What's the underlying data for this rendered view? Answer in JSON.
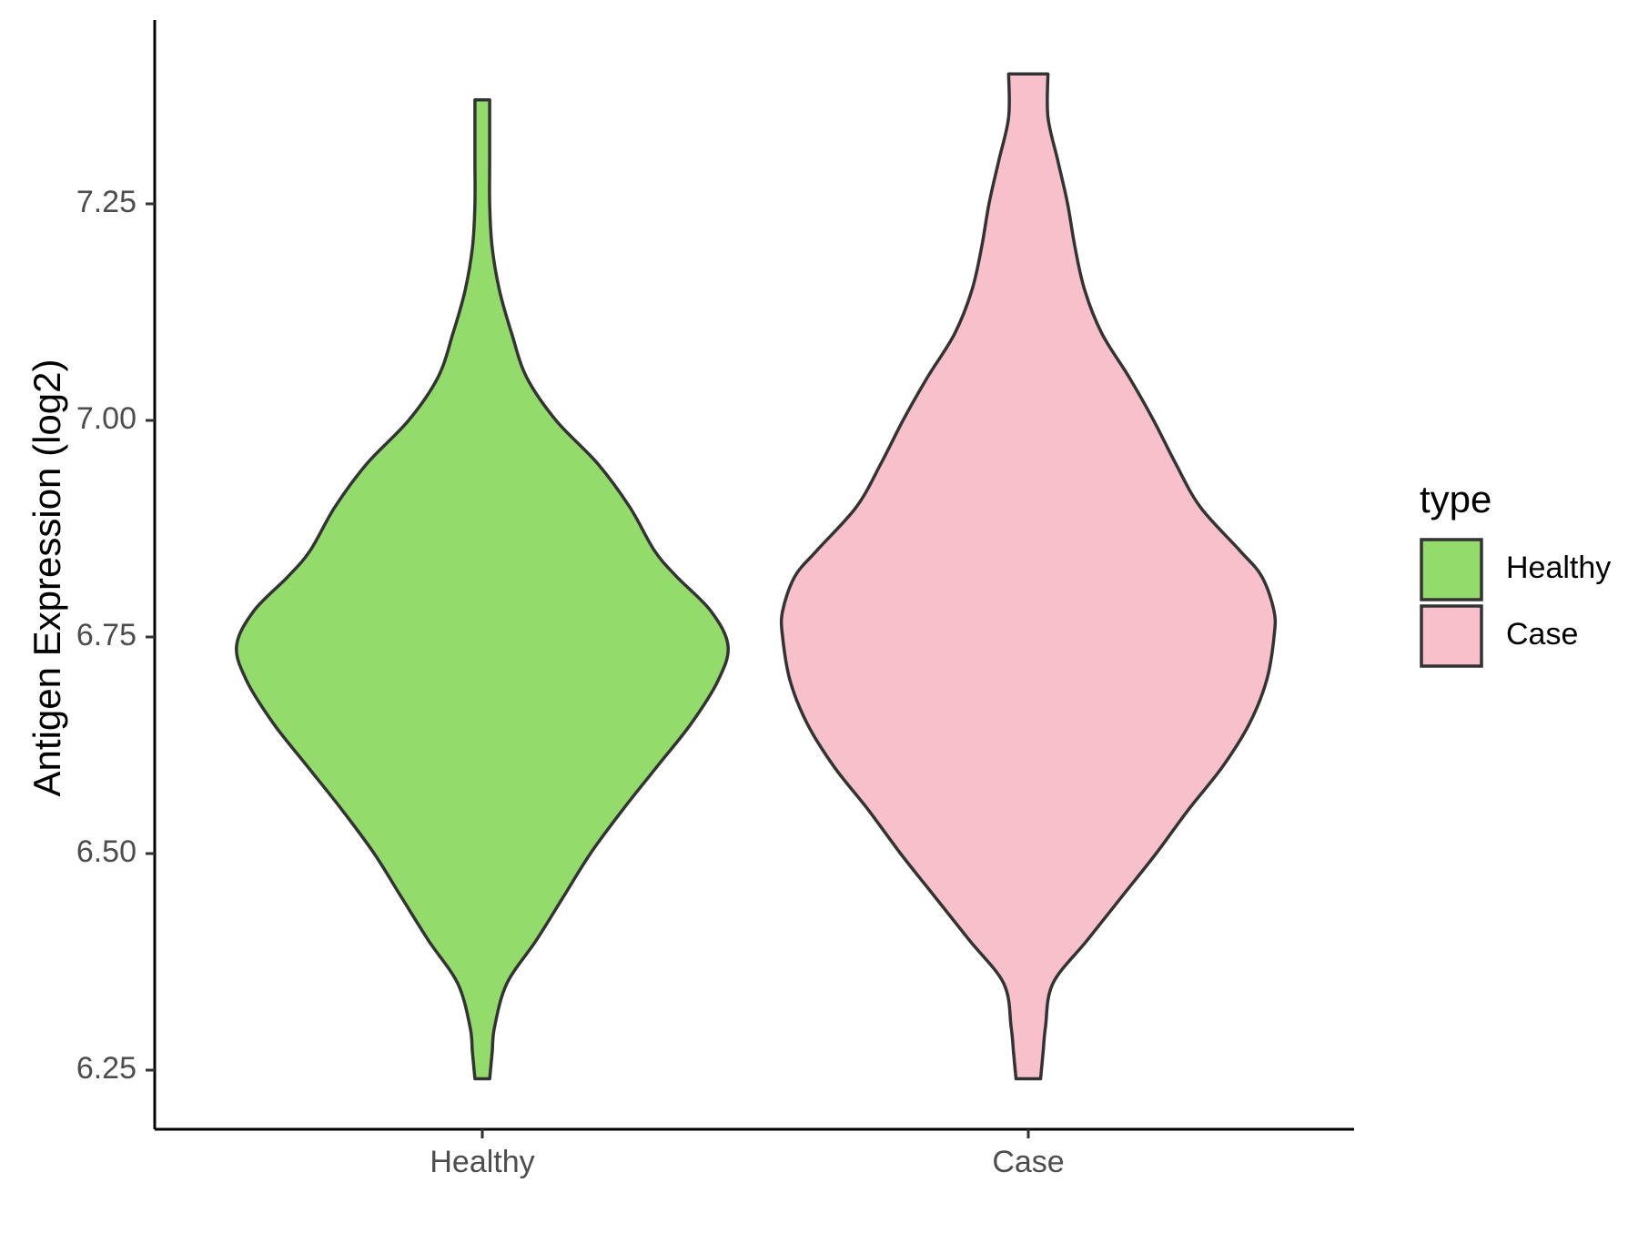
{
  "chart_data": {
    "type": "violin",
    "title": "",
    "xlabel": "",
    "ylabel": "Antigen Expression (log2)",
    "ylim": [
      6.2,
      7.43
    ],
    "yticks": [
      "6.25",
      "6.50",
      "6.75",
      "7.00",
      "7.25"
    ],
    "categories": [
      "Healthy",
      "Case"
    ],
    "legend": {
      "title": "type",
      "position": "right",
      "items": [
        "Healthy",
        "Case"
      ]
    },
    "series": [
      {
        "name": "Healthy",
        "color": "#93dc6b",
        "density_profile": [
          [
            6.24,
            0.03
          ],
          [
            6.27,
            0.04
          ],
          [
            6.3,
            0.05
          ],
          [
            6.35,
            0.1
          ],
          [
            6.4,
            0.22
          ],
          [
            6.45,
            0.33
          ],
          [
            6.5,
            0.44
          ],
          [
            6.55,
            0.57
          ],
          [
            6.6,
            0.71
          ],
          [
            6.65,
            0.85
          ],
          [
            6.7,
            0.96
          ],
          [
            6.74,
            1.0
          ],
          [
            6.78,
            0.93
          ],
          [
            6.82,
            0.79
          ],
          [
            6.85,
            0.7
          ],
          [
            6.9,
            0.6
          ],
          [
            6.95,
            0.47
          ],
          [
            7.0,
            0.3
          ],
          [
            7.05,
            0.18
          ],
          [
            7.1,
            0.12
          ],
          [
            7.15,
            0.07
          ],
          [
            7.2,
            0.04
          ],
          [
            7.25,
            0.03
          ],
          [
            7.3,
            0.03
          ],
          [
            7.37,
            0.03
          ]
        ]
      },
      {
        "name": "Case",
        "color": "#f7c0cb",
        "density_profile": [
          [
            6.24,
            0.05
          ],
          [
            6.27,
            0.06
          ],
          [
            6.3,
            0.07
          ],
          [
            6.35,
            0.1
          ],
          [
            6.4,
            0.24
          ],
          [
            6.45,
            0.38
          ],
          [
            6.5,
            0.52
          ],
          [
            6.55,
            0.65
          ],
          [
            6.6,
            0.79
          ],
          [
            6.65,
            0.9
          ],
          [
            6.7,
            0.97
          ],
          [
            6.75,
            1.0
          ],
          [
            6.78,
            1.0
          ],
          [
            6.82,
            0.95
          ],
          [
            6.85,
            0.86
          ],
          [
            6.9,
            0.7
          ],
          [
            6.95,
            0.6
          ],
          [
            7.0,
            0.51
          ],
          [
            7.05,
            0.41
          ],
          [
            7.1,
            0.3
          ],
          [
            7.15,
            0.23
          ],
          [
            7.2,
            0.19
          ],
          [
            7.25,
            0.16
          ],
          [
            7.3,
            0.12
          ],
          [
            7.35,
            0.08
          ],
          [
            7.4,
            0.08
          ]
        ]
      }
    ]
  }
}
